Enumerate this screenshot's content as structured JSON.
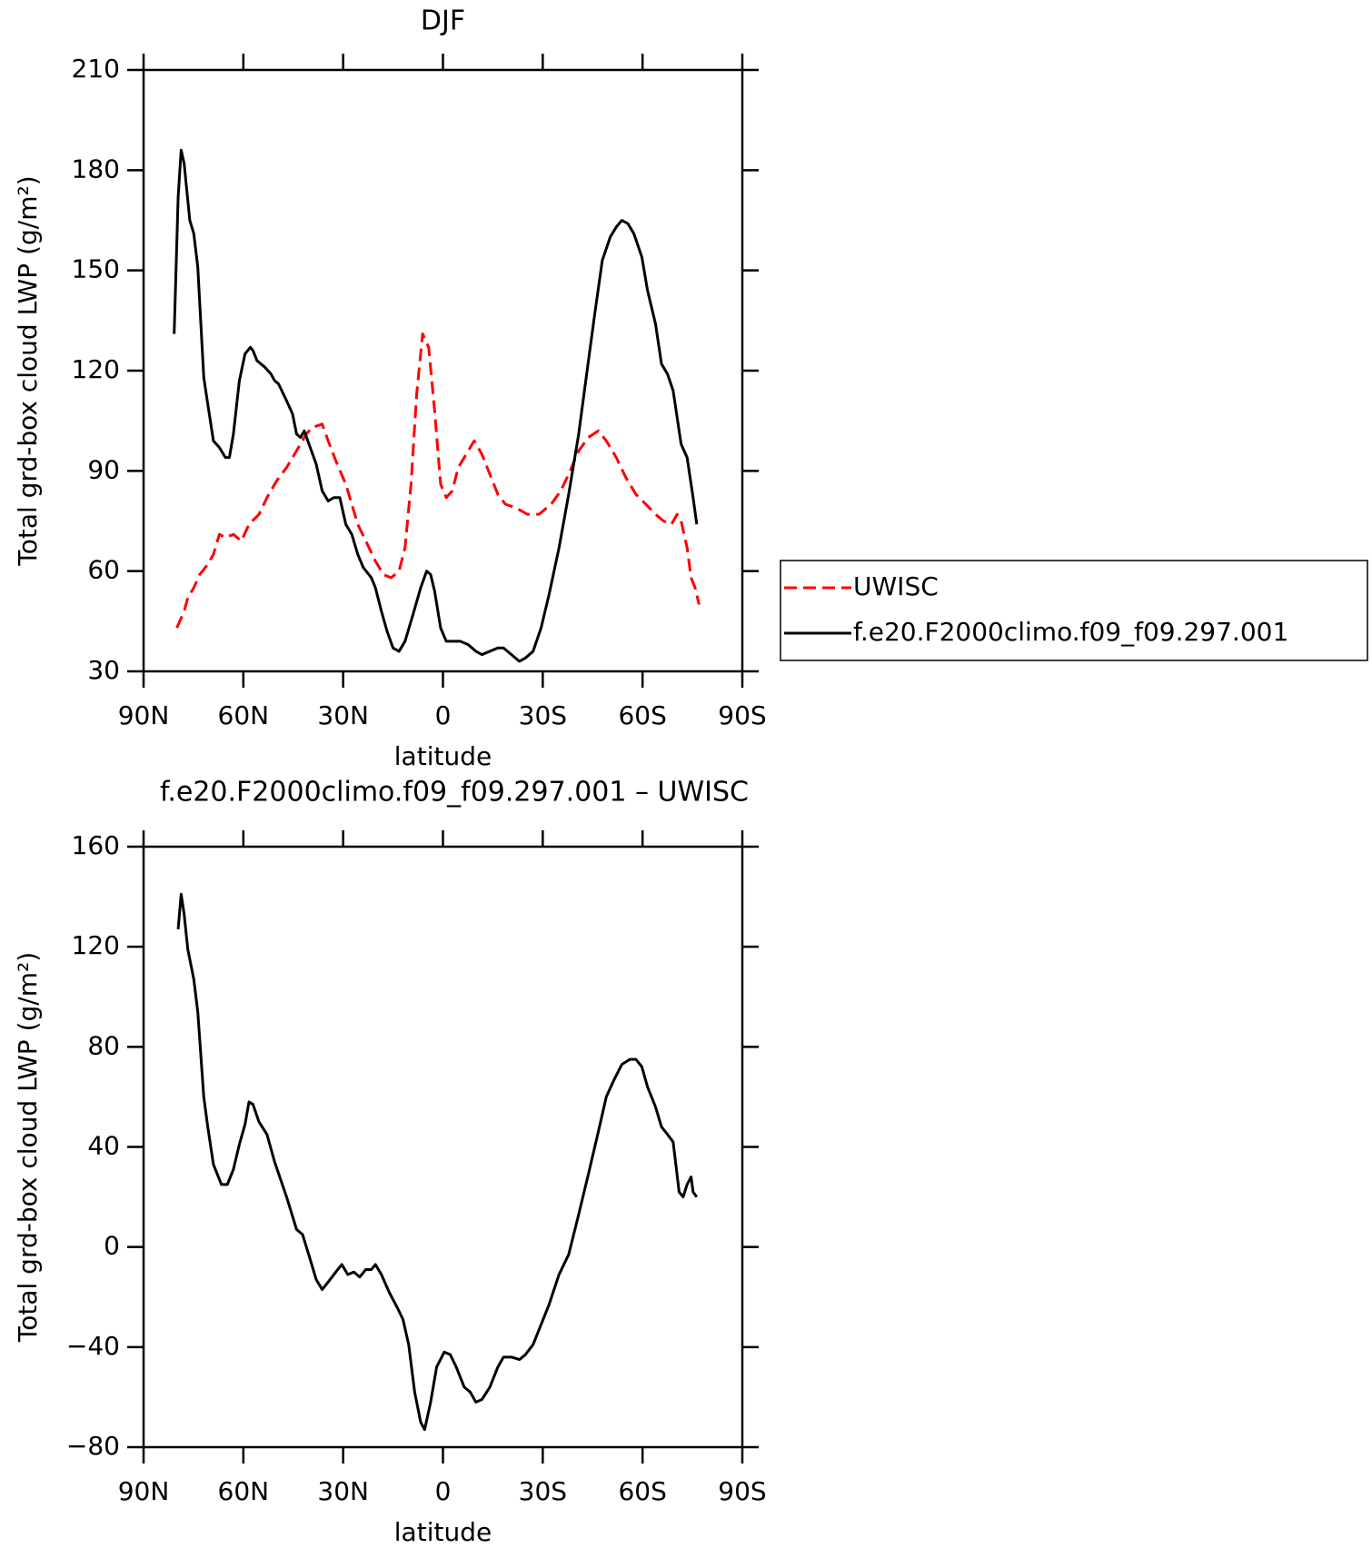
{
  "chart_data": [
    {
      "type": "line",
      "title": "DJF",
      "xlabel": "latitude",
      "ylabel": "Total grd-box cloud LWP (g/m²)",
      "xlim": [
        90,
        -90
      ],
      "xticks": [
        {
          "value": 90,
          "label": "90N"
        },
        {
          "value": 60,
          "label": "60N"
        },
        {
          "value": 30,
          "label": "30N"
        },
        0,
        {
          "value": -30,
          "label": "30S"
        },
        {
          "value": -60,
          "label": "60S"
        },
        {
          "value": -90,
          "label": "90S"
        }
      ],
      "ylim": [
        30,
        210
      ],
      "yticks": [
        30,
        60,
        90,
        120,
        150,
        180,
        210
      ],
      "legend": "right",
      "series": [
        {
          "name": "UWISC",
          "color": "#ff0000",
          "dashed": true,
          "x": [
            80.0,
            77.8,
            76.7,
            74.9,
            73.1,
            70.7,
            69,
            67.2,
            65.4,
            63,
            60.6,
            58.3,
            55.3,
            52.9,
            50,
            47,
            44,
            41.1,
            39.3,
            36.3,
            34.5,
            32.2,
            29.2,
            27.4,
            25.6,
            22.7,
            20.3,
            17.9,
            15.6,
            13.2,
            11.4,
            9.6,
            7.9,
            6.1,
            4.3,
            2.5,
            0.7,
            -1.0,
            -2.8,
            -4.6,
            -7.0,
            -9.4,
            -11.7,
            -14.1,
            -16.5,
            -18.8,
            -21.8,
            -25.4,
            -28.9,
            -32.5,
            -35.4,
            -37.8,
            -40.8,
            -43.7,
            -46.7,
            -49.1,
            -52.1,
            -55,
            -58,
            -61,
            -63.9,
            -66.3,
            -68.7,
            -70.4,
            -71.6,
            -73.4,
            -74.6,
            -75.8,
            -77
          ],
          "values": [
            43,
            48,
            52,
            55,
            59,
            62,
            65,
            71,
            70,
            71,
            69,
            74,
            77,
            82,
            87,
            91,
            96,
            101,
            103,
            104,
            99,
            93,
            86,
            80,
            74,
            68,
            63,
            59,
            58,
            60,
            67,
            86,
            113,
            131,
            127,
            108,
            86,
            82,
            84,
            91,
            95,
            99,
            95,
            89,
            83,
            80,
            79,
            77,
            77,
            80,
            84,
            89,
            96,
            100,
            102,
            99,
            94,
            88,
            83,
            80,
            77,
            75,
            74,
            77,
            75,
            67,
            58,
            55,
            50
          ]
        },
        {
          "name": "f.e20.F2000climo.f09_f09.297.001",
          "color": "#000000",
          "dashed": false,
          "x": [
            80.8,
            79.6,
            78.7,
            77.8,
            76.1,
            74.9,
            73.7,
            71.9,
            70.7,
            69,
            67.2,
            65.4,
            64.2,
            63,
            61.2,
            59.5,
            57.9,
            57.1,
            55.9,
            53.5,
            51.7,
            50.6,
            49.4,
            47,
            45.2,
            44,
            42.8,
            41.7,
            39.9,
            38.1,
            36.3,
            34.5,
            32.8,
            31,
            29.2,
            27.4,
            25.6,
            23.9,
            21.5,
            20.3,
            18.5,
            16.8,
            15,
            13.2,
            11.4,
            9.0,
            6.7,
            4.9,
            3.7,
            2.5,
            0.7,
            -1.0,
            -2.8,
            -5.2,
            -7.6,
            -9.9,
            -11.7,
            -14.1,
            -16.5,
            -18.2,
            -20.6,
            -23.0,
            -24.8,
            -27.1,
            -29.5,
            -31.9,
            -34.9,
            -37.8,
            -40.8,
            -43.2,
            -45.5,
            -47.9,
            -50.3,
            -52.1,
            -53.8,
            -55.6,
            -57.4,
            -59.8,
            -61.5,
            -63.9,
            -65.7,
            -67.5,
            -69.2,
            -71.6,
            -73.4,
            -75.2,
            -76.3
          ],
          "values": [
            131,
            172,
            186,
            182,
            165,
            161,
            151,
            118,
            110,
            99,
            97,
            94,
            94,
            101,
            117,
            125,
            127,
            126,
            123,
            121,
            119,
            117,
            116,
            111,
            107,
            101,
            100,
            102,
            97,
            92,
            84,
            81,
            82,
            82,
            74,
            71,
            65,
            61,
            58,
            55,
            48,
            42,
            37,
            36,
            39,
            47,
            55,
            60,
            59,
            54,
            43,
            39,
            39,
            39,
            38,
            36,
            35,
            36,
            37,
            37,
            35,
            33,
            34,
            36,
            43,
            53,
            67,
            83,
            101,
            119,
            136,
            153,
            160,
            163,
            165,
            164,
            161,
            154,
            144,
            134,
            122,
            119,
            114,
            98,
            94,
            82,
            74
          ]
        }
      ]
    },
    {
      "type": "line",
      "title": "f.e20.F2000climo.f09_f09.297.001 – UWISC",
      "xlabel": "latitude",
      "ylabel": "Total grd-box cloud LWP (g/m²)",
      "xlim": [
        90,
        -90
      ],
      "xticks": [
        {
          "value": 90,
          "label": "90N"
        },
        {
          "value": 60,
          "label": "60N"
        },
        {
          "value": 30,
          "label": "30N"
        },
        0,
        {
          "value": -30,
          "label": "30S"
        },
        {
          "value": -60,
          "label": "60S"
        },
        {
          "value": -90,
          "label": "90S"
        }
      ],
      "ylim": [
        -80,
        160
      ],
      "yticks": [
        {
          "value": -80,
          "label": "−80"
        },
        {
          "value": -40,
          "label": "−40"
        },
        0,
        40,
        80,
        120,
        160
      ],
      "series": [
        {
          "color": "#000000",
          "dashed": false,
          "x": [
            79.6,
            78.7,
            77.8,
            76.7,
            74.9,
            73.7,
            71.9,
            70.7,
            69,
            66.6,
            64.8,
            63,
            61.2,
            59.5,
            58.3,
            57.1,
            55.3,
            52.9,
            50.6,
            47,
            44,
            42.2,
            39.9,
            38.1,
            36.3,
            34.5,
            32.2,
            30.4,
            28.6,
            26.8,
            25,
            23.2,
            21.5,
            20.3,
            18.5,
            16.2,
            13.8,
            12,
            10.3,
            8.5,
            6.7,
            5.5,
            3.7,
            1.9,
            -0.4,
            -2.2,
            -4,
            -6.4,
            -8.2,
            -9.9,
            -11.7,
            -14.1,
            -16.5,
            -18.2,
            -20.6,
            -23,
            -24.8,
            -27.1,
            -29.5,
            -31.9,
            -34.9,
            -37.8,
            -40.8,
            -43.7,
            -46.7,
            -49.1,
            -51.5,
            -53.8,
            -56.2,
            -58,
            -59.8,
            -61.5,
            -63.9,
            -65.7,
            -67.5,
            -69.2,
            -71,
            -72.2,
            -73.4,
            -74.6,
            -75.2,
            -76.3
          ],
          "values": [
            127,
            141,
            133,
            119,
            107,
            94,
            60,
            48,
            33,
            25,
            25,
            31,
            41,
            49,
            58,
            57,
            50,
            45,
            34,
            20,
            7,
            5,
            -5,
            -13,
            -17,
            -14,
            -10,
            -7,
            -11,
            -10,
            -12,
            -9,
            -9,
            -7,
            -11,
            -18,
            -24,
            -29,
            -39,
            -58,
            -70,
            -73,
            -62,
            -48,
            -42,
            -43,
            -48,
            -56,
            -58,
            -62,
            -61,
            -56,
            -48,
            -44,
            -44,
            -45,
            -43,
            -39,
            -31,
            -23,
            -11,
            -3,
            13,
            29,
            46,
            60,
            67,
            73,
            75,
            75,
            72,
            64,
            56,
            48,
            45,
            42,
            22,
            20,
            25,
            28,
            22,
            20
          ]
        }
      ]
    }
  ]
}
